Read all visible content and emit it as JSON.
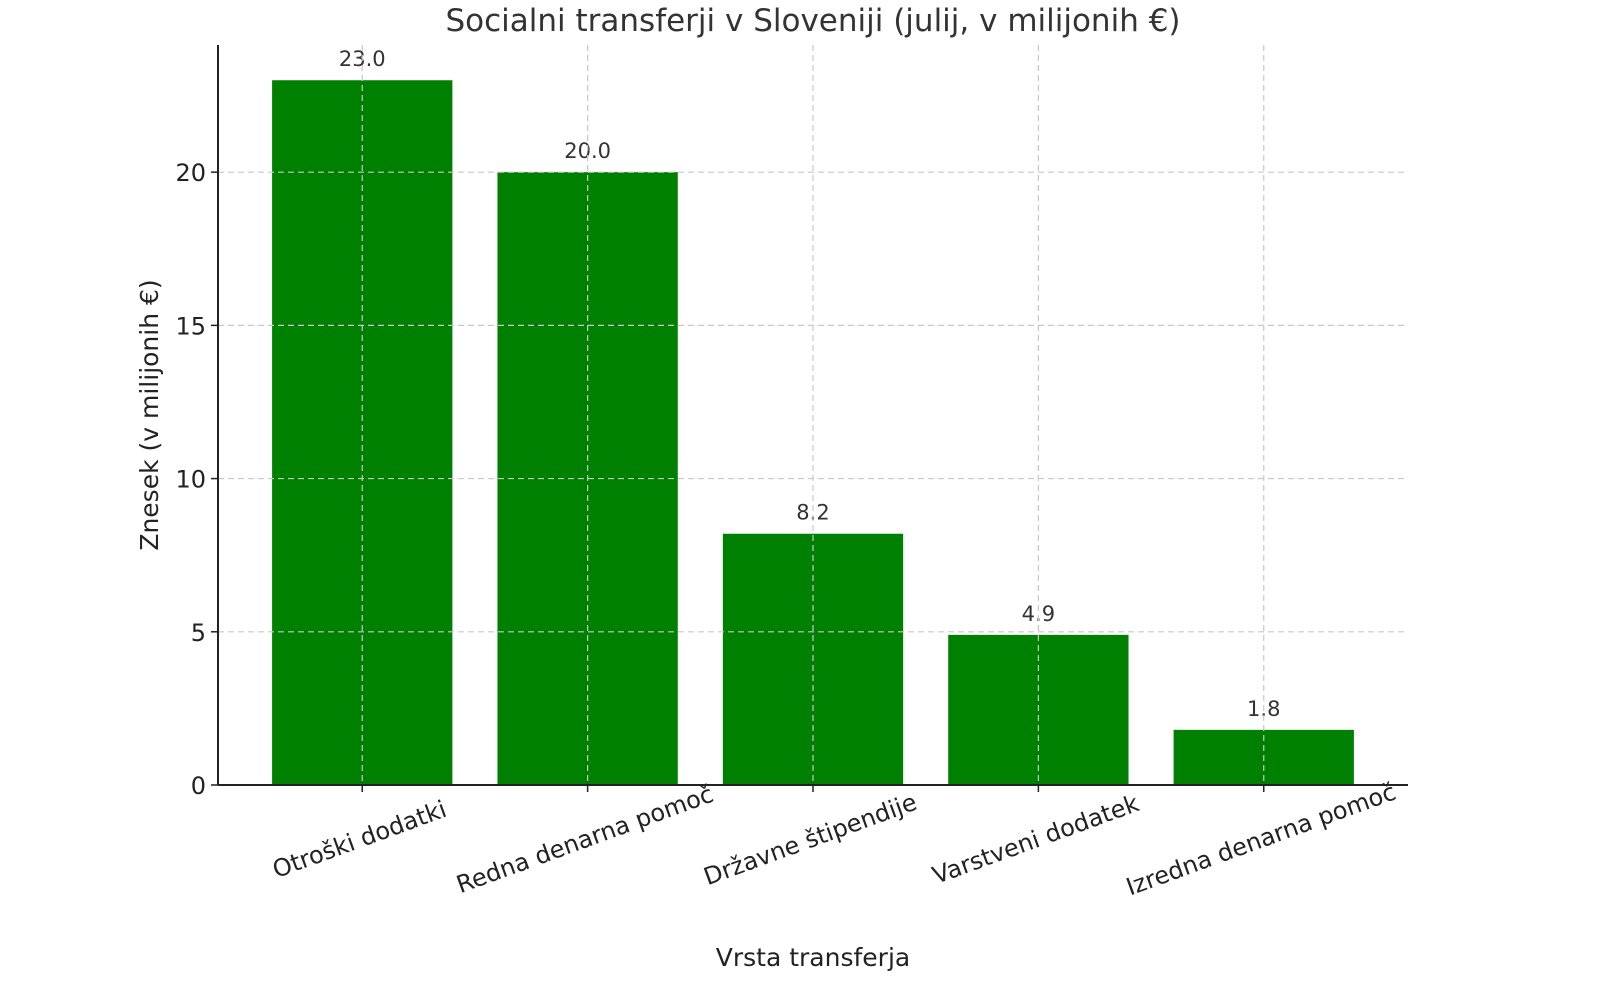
{
  "chart_data": {
    "type": "bar",
    "title": "Socialni transferji v Sloveniji (julij, v milijonih €)",
    "xlabel": "Vrsta transferja",
    "ylabel": "Znesek (v milijonih €)",
    "categories": [
      "Otroški dodatki",
      "Redna denarna pomoč",
      "Državne štipendije",
      "Varstveni dodatek",
      "Izredna denarna pomoč"
    ],
    "values": [
      23.0,
      20.0,
      8.2,
      4.9,
      1.8
    ],
    "value_labels": [
      "23.0",
      "20.0",
      "8.2",
      "4.9",
      "1.8"
    ],
    "yticks": [
      0,
      5,
      10,
      15,
      20
    ],
    "ytick_labels": [
      "0",
      "5",
      "10",
      "15",
      "20"
    ],
    "ylim": [
      0,
      24.15
    ],
    "grid": true,
    "bar_color": "#008000"
  }
}
